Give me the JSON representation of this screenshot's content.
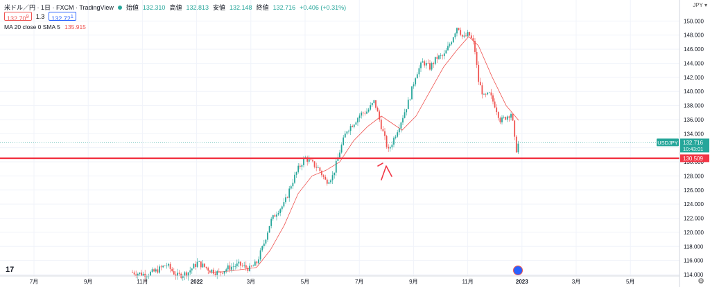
{
  "header": {
    "title": "米ドル／円 · 1日 · FXCM · TradingView",
    "open_label": "始値",
    "open": "132.310",
    "high_label": "高値",
    "high": "132.813",
    "low_label": "安値",
    "low": "132.148",
    "close_label": "終値",
    "close": "132.716",
    "change": "+0.406 (+0.31%)",
    "bid": "132.70",
    "bid_sup": "9",
    "spread": "1.3",
    "ask": "132.72",
    "ask_sup": "1",
    "indicator": "MA 20 close 0 SMA 5",
    "indicator_value": "135.915",
    "axis_currency": "JPY"
  },
  "colors": {
    "up": "#26a69a",
    "down": "#ef5350",
    "ma": "#ef5350",
    "hline": "#f23645",
    "grid": "#f0f3fa"
  },
  "icons": [
    "tradingview-logo-icon",
    "us-flag-icon",
    "gear-icon",
    "arrow-annotation-icon"
  ],
  "chart_data": {
    "type": "candlestick",
    "symbol": "USDJPY",
    "ylim": [
      114,
      152
    ],
    "y_ticks": [
      "114.000",
      "116.000",
      "118.000",
      "120.000",
      "122.000",
      "124.000",
      "126.000",
      "128.000",
      "130.000",
      "132.000",
      "134.000",
      "136.000",
      "138.000",
      "140.000",
      "142.000",
      "144.000",
      "146.000",
      "148.000",
      "150.000"
    ],
    "x_ticks": [
      "7月",
      "9月",
      "11月",
      "2022",
      "3月",
      "5月",
      "7月",
      "9月",
      "11月",
      "2023",
      "3月",
      "5月"
    ],
    "price_path": [
      {
        "x": 191,
        "y": 114.3
      },
      {
        "x": 210,
        "y": 114.0
      },
      {
        "x": 225,
        "y": 114.5
      },
      {
        "x": 240,
        "y": 115.4
      },
      {
        "x": 255,
        "y": 113.8
      },
      {
        "x": 270,
        "y": 114.2
      },
      {
        "x": 285,
        "y": 115.7
      },
      {
        "x": 300,
        "y": 114.8
      },
      {
        "x": 315,
        "y": 114.2
      },
      {
        "x": 330,
        "y": 115.0
      },
      {
        "x": 345,
        "y": 115.4
      },
      {
        "x": 360,
        "y": 114.8
      },
      {
        "x": 370,
        "y": 115.6
      },
      {
        "x": 380,
        "y": 118.2
      },
      {
        "x": 390,
        "y": 121.5
      },
      {
        "x": 400,
        "y": 123.0
      },
      {
        "x": 410,
        "y": 124.0
      },
      {
        "x": 420,
        "y": 126.8
      },
      {
        "x": 430,
        "y": 129.0
      },
      {
        "x": 440,
        "y": 130.6
      },
      {
        "x": 450,
        "y": 129.8
      },
      {
        "x": 460,
        "y": 129.0
      },
      {
        "x": 470,
        "y": 127.2
      },
      {
        "x": 480,
        "y": 128.0
      },
      {
        "x": 490,
        "y": 131.5
      },
      {
        "x": 500,
        "y": 134.5
      },
      {
        "x": 510,
        "y": 135.5
      },
      {
        "x": 520,
        "y": 136.8
      },
      {
        "x": 530,
        "y": 137.2
      },
      {
        "x": 540,
        "y": 138.6
      },
      {
        "x": 550,
        "y": 135.0
      },
      {
        "x": 560,
        "y": 131.5
      },
      {
        "x": 570,
        "y": 133.8
      },
      {
        "x": 580,
        "y": 136.2
      },
      {
        "x": 590,
        "y": 138.8
      },
      {
        "x": 600,
        "y": 142.5
      },
      {
        "x": 610,
        "y": 144.2
      },
      {
        "x": 620,
        "y": 143.4
      },
      {
        "x": 630,
        "y": 144.8
      },
      {
        "x": 640,
        "y": 145.0
      },
      {
        "x": 650,
        "y": 147.0
      },
      {
        "x": 660,
        "y": 149.4
      },
      {
        "x": 668,
        "y": 147.5
      },
      {
        "x": 676,
        "y": 148.2
      },
      {
        "x": 684,
        "y": 146.6
      },
      {
        "x": 690,
        "y": 141.5
      },
      {
        "x": 698,
        "y": 139.2
      },
      {
        "x": 706,
        "y": 139.6
      },
      {
        "x": 714,
        "y": 138.0
      },
      {
        "x": 722,
        "y": 135.8
      },
      {
        "x": 730,
        "y": 136.4
      },
      {
        "x": 738,
        "y": 137.0
      },
      {
        "x": 744,
        "y": 131.5
      },
      {
        "x": 748,
        "y": 132.7
      }
    ],
    "ma_path": [
      {
        "x": 300,
        "y": 114.2
      },
      {
        "x": 340,
        "y": 114.6
      },
      {
        "x": 370,
        "y": 115.0
      },
      {
        "x": 390,
        "y": 117.5
      },
      {
        "x": 410,
        "y": 121.0
      },
      {
        "x": 430,
        "y": 125.5
      },
      {
        "x": 450,
        "y": 128.0
      },
      {
        "x": 470,
        "y": 128.8
      },
      {
        "x": 490,
        "y": 130.0
      },
      {
        "x": 510,
        "y": 133.0
      },
      {
        "x": 530,
        "y": 135.0
      },
      {
        "x": 550,
        "y": 136.5
      },
      {
        "x": 565,
        "y": 135.5
      },
      {
        "x": 580,
        "y": 134.5
      },
      {
        "x": 600,
        "y": 136.5
      },
      {
        "x": 620,
        "y": 140.0
      },
      {
        "x": 640,
        "y": 143.5
      },
      {
        "x": 660,
        "y": 146.0
      },
      {
        "x": 676,
        "y": 147.8
      },
      {
        "x": 690,
        "y": 146.5
      },
      {
        "x": 710,
        "y": 142.0
      },
      {
        "x": 730,
        "y": 138.0
      },
      {
        "x": 748,
        "y": 135.9
      }
    ],
    "horizontal_line": 130.509,
    "last_price": "132.716",
    "countdown": "10:43:01",
    "hline_label": "130.509"
  }
}
